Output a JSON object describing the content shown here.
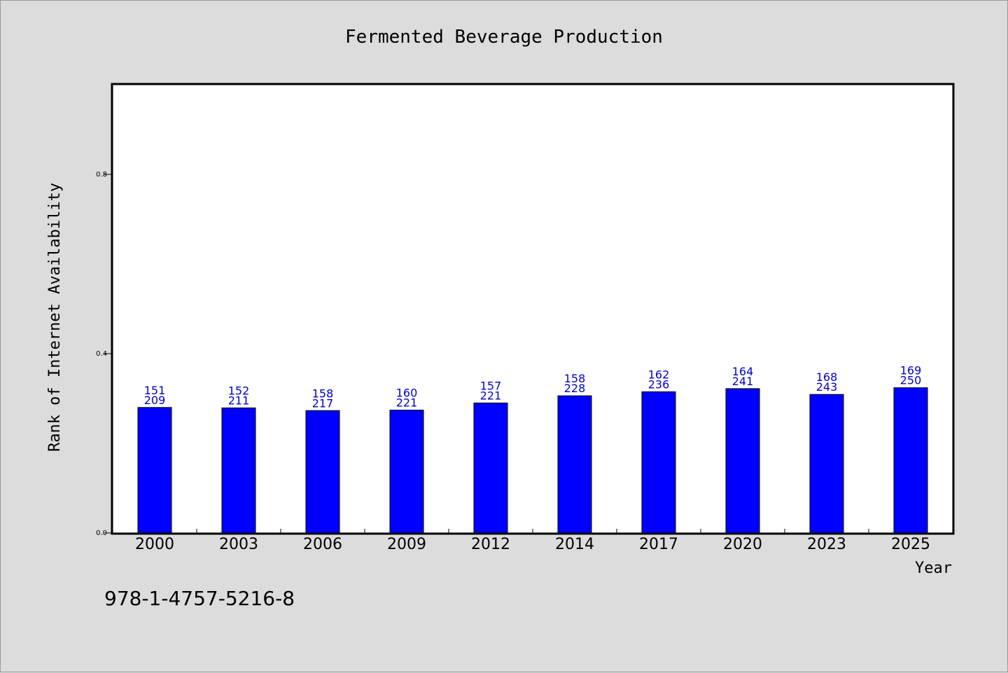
{
  "chart_data": {
    "type": "bar",
    "title": "Fermented Beverage Production",
    "xlabel": "Year",
    "ylabel": "Rank of Internet Availability",
    "categories": [
      "2000",
      "2003",
      "2006",
      "2009",
      "2012",
      "2014",
      "2017",
      "2020",
      "2023",
      "2025"
    ],
    "values": [
      0.28,
      0.279,
      0.273,
      0.274,
      0.29,
      0.306,
      0.315,
      0.322,
      0.309,
      0.324
    ],
    "data_labels": [
      [
        "151",
        "209"
      ],
      [
        "152",
        "211"
      ],
      [
        "158",
        "217"
      ],
      [
        "160",
        "221"
      ],
      [
        "157",
        "221"
      ],
      [
        "158",
        "228"
      ],
      [
        "162",
        "236"
      ],
      [
        "164",
        "241"
      ],
      [
        "168",
        "243"
      ],
      [
        "169",
        "250"
      ]
    ],
    "yticks": [
      "0.0",
      "0.4",
      "0.8"
    ],
    "ytick_values": [
      0,
      0.4,
      0.8
    ],
    "ylim": [
      0,
      1.0
    ],
    "grid": false,
    "bar_color": "#0000ff",
    "label_color": "#0000cc"
  },
  "footer": {
    "isbn": "978-1-4757-5216-8"
  }
}
